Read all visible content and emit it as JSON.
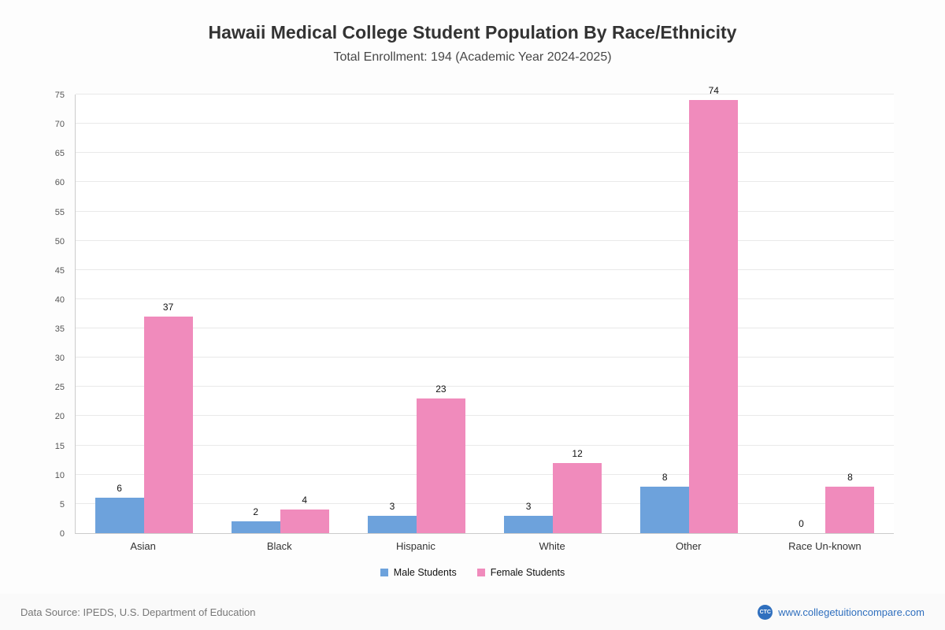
{
  "header": {
    "title": "Hawaii Medical College Student Population By Race/Ethnicity",
    "subtitle": "Total Enrollment: 194 (Academic Year 2024-2025)"
  },
  "chart_data": {
    "type": "bar",
    "title": "Hawaii Medical College Student Population By Race/Ethnicity",
    "subtitle": "Total Enrollment: 194 (Academic Year 2024-2025)",
    "categories": [
      "Asian",
      "Black",
      "Hispanic",
      "White",
      "Other",
      "Race Un-known"
    ],
    "series": [
      {
        "name": "Male Students",
        "color": "#6da2dc",
        "values": [
          6,
          2,
          3,
          3,
          8,
          0
        ]
      },
      {
        "name": "Female Students",
        "color": "#f08bbc",
        "values": [
          37,
          4,
          23,
          12,
          74,
          8
        ]
      }
    ],
    "xlabel": "",
    "ylabel": "",
    "ylim": [
      0,
      75
    ],
    "ytick_step": 5,
    "grid": true,
    "legend_position": "bottom",
    "value_labels": true
  },
  "legend": {
    "items": [
      {
        "label": "Male Students",
        "color": "#6da2dc"
      },
      {
        "label": "Female Students",
        "color": "#f08bbc"
      }
    ]
  },
  "footer": {
    "source": "Data Source: IPEDS, U.S. Department of Education",
    "site": "www.collegetuitioncompare.com",
    "logo_text": "CTC"
  }
}
